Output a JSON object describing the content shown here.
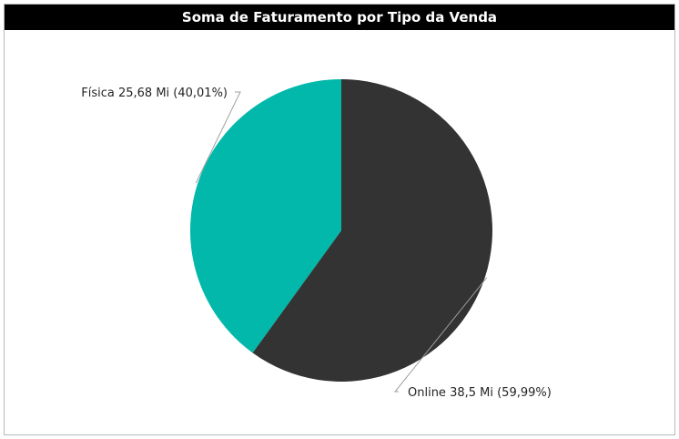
{
  "title": "Soma de Faturamento por Tipo da Venda",
  "colors": {
    "title_bg": "#000000",
    "title_fg": "#ffffff",
    "leader": "#a0a0a0"
  },
  "chart_data": {
    "type": "pie",
    "title": "Soma de Faturamento por Tipo da Venda",
    "slices": [
      {
        "label": "Online",
        "value": 38.5,
        "percent": 59.99,
        "color": "#333333",
        "display": "Online 38,5 Mi (59,99%)"
      },
      {
        "label": "Física",
        "value": 25.68,
        "percent": 40.01,
        "color": "#01B8AA",
        "display": "Física 25,68 Mi (40,01%)"
      }
    ],
    "unit": "Mi"
  }
}
